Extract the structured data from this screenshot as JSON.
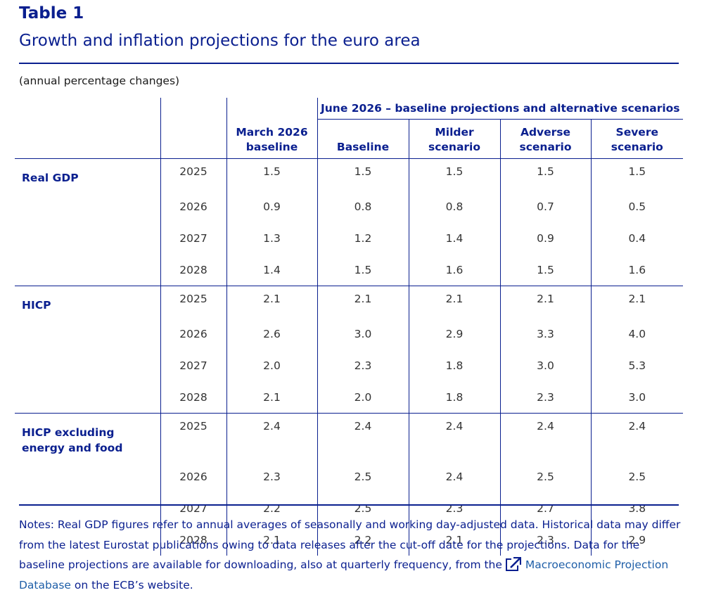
{
  "title": "Table 1",
  "subtitle": "Growth and inflation projections for the euro area",
  "units": "(annual percentage changes)",
  "table": {
    "group_header": "June 2026 – baseline projections and alternative scenarios",
    "columns": {
      "march": "March 2026 baseline",
      "baseline": "Baseline",
      "milder": "Milder scenario",
      "adverse": "Adverse scenario",
      "severe": "Severe scenario"
    },
    "blocks": [
      {
        "label": "Real GDP",
        "rows": [
          {
            "year": "2025",
            "values": [
              "1.5",
              "1.5",
              "1.5",
              "1.5",
              "1.5"
            ]
          },
          {
            "year": "2026",
            "values": [
              "0.9",
              "0.8",
              "0.8",
              "0.7",
              "0.5"
            ]
          },
          {
            "year": "2027",
            "values": [
              "1.3",
              "1.2",
              "1.4",
              "0.9",
              "0.4"
            ]
          },
          {
            "year": "2028",
            "values": [
              "1.4",
              "1.5",
              "1.6",
              "1.5",
              "1.6"
            ]
          }
        ]
      },
      {
        "label": "HICP",
        "rows": [
          {
            "year": "2025",
            "values": [
              "2.1",
              "2.1",
              "2.1",
              "2.1",
              "2.1"
            ]
          },
          {
            "year": "2026",
            "values": [
              "2.6",
              "3.0",
              "2.9",
              "3.3",
              "4.0"
            ]
          },
          {
            "year": "2027",
            "values": [
              "2.0",
              "2.3",
              "1.8",
              "3.0",
              "5.3"
            ]
          },
          {
            "year": "2028",
            "values": [
              "2.1",
              "2.0",
              "1.8",
              "2.3",
              "3.0"
            ]
          }
        ]
      },
      {
        "label": "HICP excluding energy and food",
        "rows": [
          {
            "year": "2025",
            "values": [
              "2.4",
              "2.4",
              "2.4",
              "2.4",
              "2.4"
            ]
          },
          {
            "year": "2026",
            "values": [
              "2.3",
              "2.5",
              "2.4",
              "2.5",
              "2.5"
            ]
          },
          {
            "year": "2027",
            "values": [
              "2.2",
              "2.5",
              "2.3",
              "2.7",
              "3.8"
            ]
          },
          {
            "year": "2028",
            "values": [
              "2.1",
              "2.2",
              "2.1",
              "2.3",
              "2.9"
            ]
          }
        ]
      }
    ]
  },
  "notes": {
    "text": "Notes: Real GDP figures refer to annual averages of seasonally and working day-adjusted data. Historical data may differ from the latest Eurostat publications owing to data releases after the cut-off date for the projections. Data for the baseline projections are available for downloading, also at quarterly frequency, from the",
    "link_icon": "external-link-icon",
    "link_text": "Macroeconomic Projection Database",
    "suffix": "on the ECB’s website."
  },
  "colors": {
    "accent": "#0a1f8f",
    "link": "#1f5fa8",
    "body_text": "#333333"
  }
}
